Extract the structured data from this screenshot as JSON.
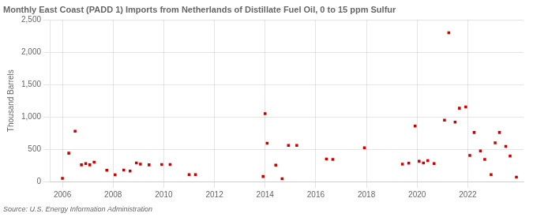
{
  "chart_data": {
    "type": "scatter",
    "title": "Monthly East Coast (PADD 1) Imports from Netherlands of Distillate Fuel Oil, 0 to 15 ppm Sulfur",
    "ylabel": "Thousand Barrels",
    "source": "Source: U.S. Energy Information Administration",
    "color": "#cc0000",
    "marker": "square",
    "grid": true,
    "xlim": [
      2005.5,
      2024.2
    ],
    "xticks": [
      2006,
      2008,
      2010,
      2012,
      2014,
      2016,
      2018,
      2020,
      2022
    ],
    "ylim": [
      0,
      2500
    ],
    "yticks": [
      0,
      500,
      {
        "value": 1000,
        "label": "1,000"
      },
      {
        "value": 1500,
        "label": "1,500"
      },
      {
        "value": 2000,
        "label": "2,000"
      },
      {
        "value": 2500,
        "label": "2,500"
      }
    ],
    "x": [
      2006.0,
      2006.25,
      2006.5,
      2006.75,
      2006.92,
      2007.08,
      2007.25,
      2007.75,
      2008.08,
      2008.42,
      2008.67,
      2008.92,
      2009.08,
      2009.42,
      2009.92,
      2010.25,
      2011.0,
      2011.25,
      2013.92,
      2014.0,
      2014.08,
      2014.42,
      2014.67,
      2014.92,
      2015.25,
      2016.42,
      2016.67,
      2017.92,
      2019.42,
      2019.67,
      2019.92,
      2020.08,
      2020.25,
      2020.42,
      2020.67,
      2021.08,
      2021.25,
      2021.5,
      2021.67,
      2021.92,
      2022.08,
      2022.25,
      2022.5,
      2022.67,
      2022.92,
      2023.08,
      2023.25,
      2023.5,
      2023.67,
      2023.92
    ],
    "values": [
      50,
      440,
      780,
      260,
      280,
      260,
      300,
      175,
      105,
      180,
      165,
      290,
      270,
      260,
      265,
      265,
      110,
      110,
      80,
      1050,
      595,
      255,
      45,
      560,
      560,
      350,
      345,
      525,
      270,
      285,
      860,
      315,
      290,
      325,
      280,
      950,
      2300,
      920,
      1135,
      1155,
      405,
      760,
      475,
      345,
      110,
      600,
      760,
      545,
      395,
      70
    ]
  }
}
